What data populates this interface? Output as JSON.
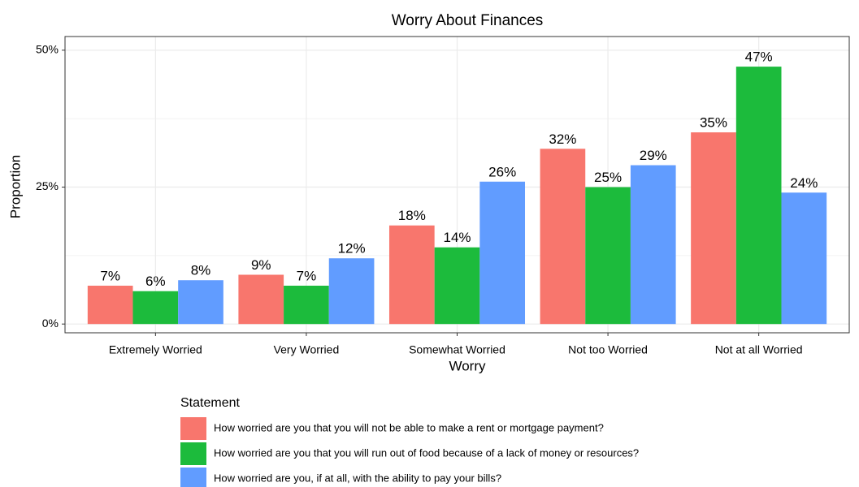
{
  "chart_data": {
    "type": "bar",
    "title": "Worry About Finances",
    "x_label": "Worry",
    "y_label": "Proportion",
    "legend_title": "Statement",
    "categories": [
      "Extremely Worried",
      "Very Worried",
      "Somewhat Worried",
      "Not too Worried",
      "Not at all Worried"
    ],
    "series": [
      {
        "name": "How worried are you that you will not be able to make a rent or mortgage payment?",
        "color": "#f8766d",
        "values": [
          7,
          9,
          18,
          32,
          35
        ],
        "value_labels": [
          "7%",
          "9%",
          "18%",
          "32%",
          "35%"
        ]
      },
      {
        "name": "How worried are you that you will run out of food because of a lack of money or resources?",
        "color": "#1cbb3c",
        "values": [
          6,
          7,
          14,
          25,
          47
        ],
        "value_labels": [
          "6%",
          "7%",
          "14%",
          "25%",
          "47%"
        ]
      },
      {
        "name": "How worried are you, if at all, with the ability to pay your bills?",
        "color": "#619cff",
        "values": [
          8,
          12,
          26,
          29,
          24
        ],
        "value_labels": [
          "8%",
          "12%",
          "26%",
          "29%",
          "24%"
        ]
      }
    ],
    "ylim": [
      -1.6,
      52.5
    ],
    "yticks": [
      {
        "value": 0,
        "label": "0%"
      },
      {
        "value": 25,
        "label": "25%"
      },
      {
        "value": 50,
        "label": "50%"
      }
    ],
    "grid": true,
    "legend_position": "bottom"
  }
}
